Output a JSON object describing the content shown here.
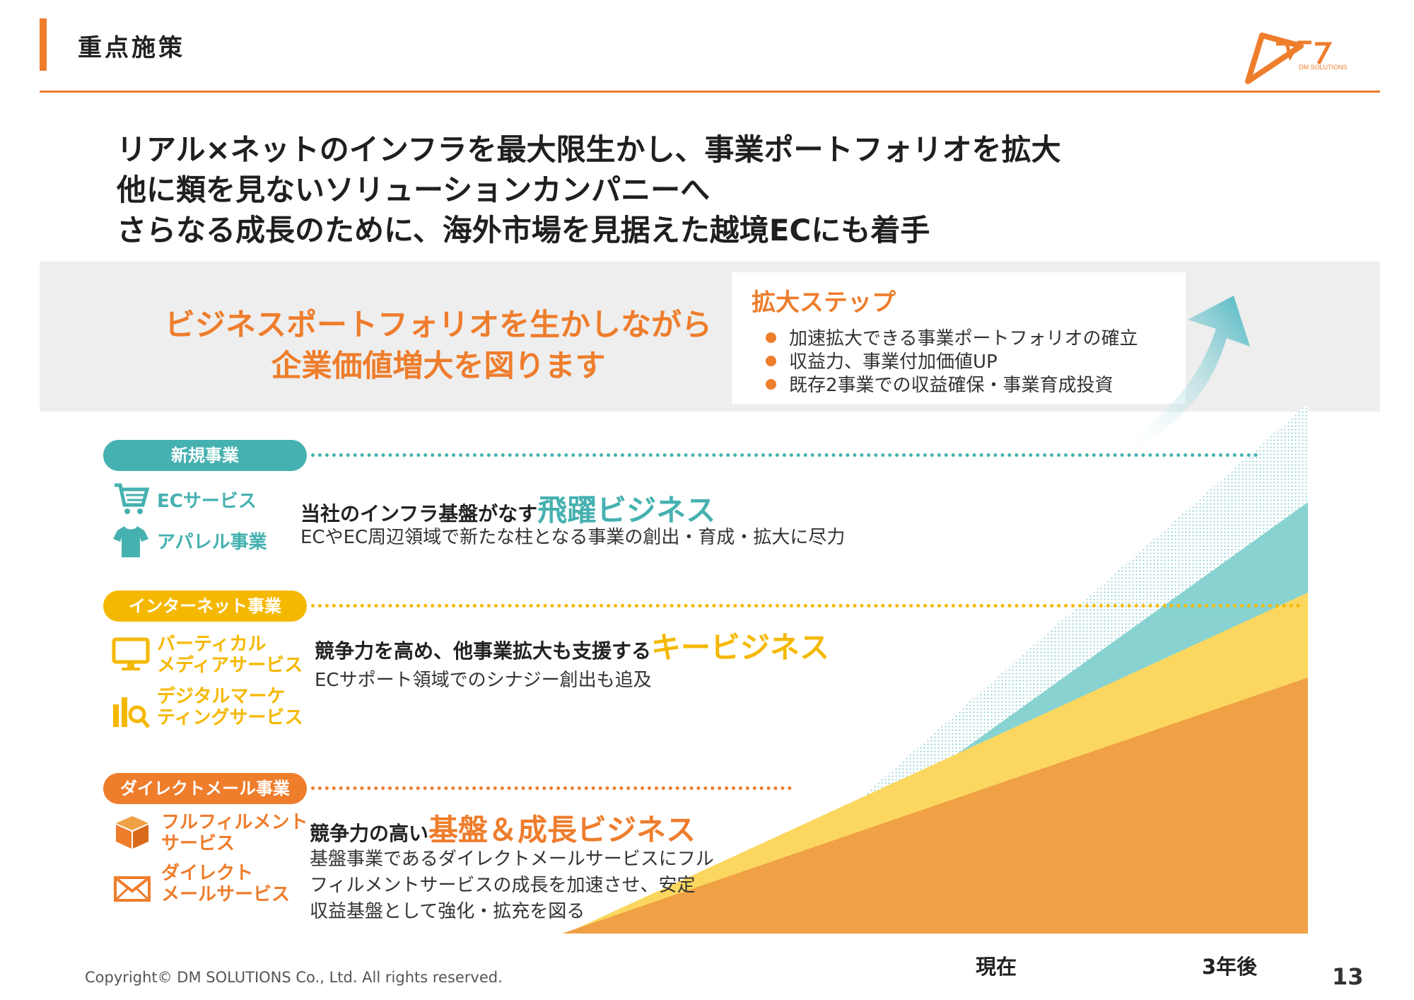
{
  "header": {
    "title": "重点施策",
    "logo_text": "DM SOLUTIONS"
  },
  "headline": {
    "lines": [
      "リアル×ネットのインフラを最大限生かし、事業ポートフォリオを拡大",
      "他に類を見ないソリューションカンパニーへ",
      "さらなる成長のために、海外市場を見据えた越境ECにも着手"
    ]
  },
  "banner": {
    "message_lines": [
      "ビジネスポートフォリオを生かしながら",
      "企業価値増大を図ります"
    ],
    "step_title": "拡大ステップ",
    "step_items": [
      "加速拡大できる事業ポートフォリオの確立",
      "収益力、事業付加価値UP",
      "既存2事業での収益確保・事業育成投資"
    ]
  },
  "segments": [
    {
      "pill": "新規事業",
      "color": "#45b1b0",
      "services": [
        "ECサービス",
        "アパレル事業"
      ],
      "icons": [
        "cart-icon",
        "tshirt-icon"
      ],
      "head_prefix": "当社のインフラ基盤がなす",
      "head_highlight": "飛躍ビジネス",
      "desc_lines": [
        "ECやEC周辺領域で新たな柱となる事業の創出・育成・拡大に尽力"
      ]
    },
    {
      "pill": "インターネット事業",
      "color": "#f5b800",
      "services": [
        "バーティカル\nメディアサービス",
        "デジタルマーケ\nティングサービス"
      ],
      "icons": [
        "monitor-icon",
        "analytics-icon"
      ],
      "head_prefix": "競争力を高め、他事業拡大も支援する",
      "head_highlight": "キービジネス",
      "desc_lines": [
        "ECサポート領域でのシナジー創出も追及"
      ]
    },
    {
      "pill": "ダイレクトメール事業",
      "color": "#ee7d2c",
      "services": [
        "フルフィルメント\nサービス",
        "ダイレクト\nメールサービス"
      ],
      "icons": [
        "box-icon",
        "envelope-icon"
      ],
      "head_prefix": "競争力の高い",
      "head_highlight": "基盤＆成長ビジネス",
      "desc_lines": [
        "基盤事業であるダイレクトメールサービスにフル",
        "フィルメントサービスの成長を加速させ、安定",
        "収益基盤として強化・拡充を図る"
      ]
    }
  ],
  "axis": {
    "now": "現在",
    "later": "3年後"
  },
  "colors": {
    "orange": "#f0a045",
    "yellow": "#fbd760",
    "teal": "#88d3d1",
    "arrow": "#4bb6c0"
  },
  "footer": {
    "copyright": "Copyright© DM SOLUTIONS Co., Ltd. All rights reserved.",
    "page": "13"
  }
}
